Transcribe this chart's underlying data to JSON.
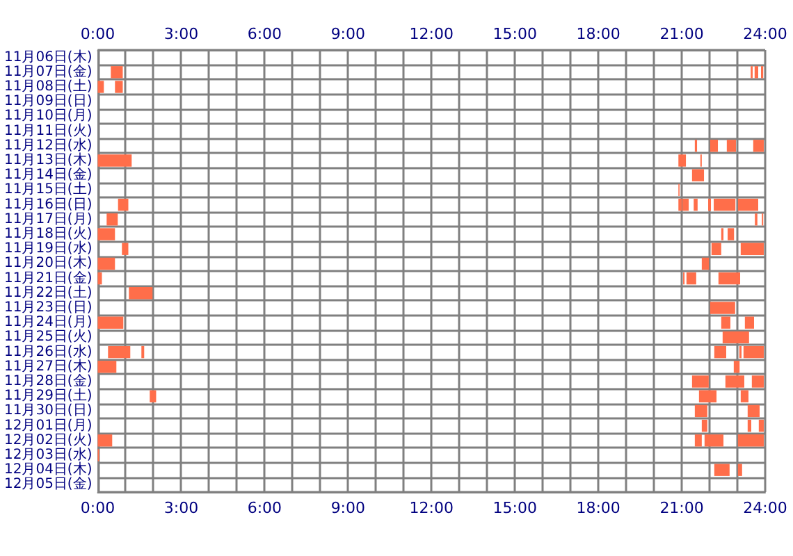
{
  "chart_data": {
    "type": "bar",
    "orientation": "horizontal",
    "grid": true,
    "categories": [
      "11月06日(木)",
      "11月07日(金)",
      "11月08日(土)",
      "11月09日(日)",
      "11月10日(月)",
      "11月11日(火)",
      "11月12日(水)",
      "11月13日(木)",
      "11月14日(金)",
      "11月15日(土)",
      "11月16日(日)",
      "11月17日(月)",
      "11月18日(火)",
      "11月19日(水)",
      "11月20日(木)",
      "11月21日(金)",
      "11月22日(土)",
      "11月23日(日)",
      "11月24日(月)",
      "11月25日(火)",
      "11月26日(水)",
      "11月27日(木)",
      "11月28日(金)",
      "11月29日(土)",
      "11月30日(日)",
      "12月01日(月)",
      "12月02日(火)",
      "12月03日(水)",
      "12月04日(木)",
      "12月05日(金)"
    ],
    "xlim": [
      0,
      24
    ],
    "xticks": [
      {
        "value": 0,
        "label": "0:00"
      },
      {
        "value": 1,
        "label": null
      },
      {
        "value": 2,
        "label": null
      },
      {
        "value": 3,
        "label": "3:00"
      },
      {
        "value": 4,
        "label": null
      },
      {
        "value": 5,
        "label": null
      },
      {
        "value": 6,
        "label": "6:00"
      },
      {
        "value": 7,
        "label": null
      },
      {
        "value": 8,
        "label": null
      },
      {
        "value": 9,
        "label": "9:00"
      },
      {
        "value": 10,
        "label": null
      },
      {
        "value": 11,
        "label": null
      },
      {
        "value": 12,
        "label": "12:00"
      },
      {
        "value": 13,
        "label": null
      },
      {
        "value": 14,
        "label": null
      },
      {
        "value": 15,
        "label": "15:00"
      },
      {
        "value": 16,
        "label": null
      },
      {
        "value": 17,
        "label": null
      },
      {
        "value": 18,
        "label": "18:00"
      },
      {
        "value": 19,
        "label": null
      },
      {
        "value": 20,
        "label": null
      },
      {
        "value": 21,
        "label": "21:00"
      },
      {
        "value": 22,
        "label": null
      },
      {
        "value": 23,
        "label": null
      },
      {
        "value": 24,
        "label": "24:00"
      }
    ],
    "x2lim": [
      0,
      24
    ],
    "x2ticks": [
      {
        "value": 0,
        "label": "0:00"
      },
      {
        "value": 3,
        "label": "3:00"
      },
      {
        "value": 6,
        "label": "6:00"
      },
      {
        "value": 9,
        "label": "9:00"
      },
      {
        "value": 12,
        "label": "12:00"
      },
      {
        "value": 15,
        "label": "15:00"
      },
      {
        "value": 18,
        "label": "18:00"
      },
      {
        "value": 21,
        "label": "21:00"
      },
      {
        "value": 24,
        "label": "24:00"
      }
    ],
    "series": [
      {
        "color": "#ff6e4a",
        "base": [
          null,
          0.47,
          0,
          null,
          null,
          null,
          21.47,
          0,
          21.37,
          20.88,
          0.73,
          0.32,
          0,
          0.87,
          0,
          0,
          1.12,
          22.02,
          0,
          22.47,
          0.37,
          0,
          21.37,
          1.87,
          21.47,
          21.72,
          0,
          0,
          22.17,
          null
        ],
        "values": [
          null,
          0.43,
          0.22,
          null,
          null,
          null,
          0.08,
          1.22,
          0.43,
          0.04,
          0.37,
          0.4,
          0.62,
          0.23,
          0.62,
          0.15,
          0.85,
          0.9,
          0.92,
          0.95,
          0.8,
          0.67,
          0.6,
          0.23,
          0.45,
          0.2,
          0.52,
          0.05,
          0.55,
          null
        ]
      },
      {
        "color": "#ff6e4a",
        "base": [
          null,
          23.48,
          0.62,
          null,
          null,
          null,
          22.02,
          20.88,
          null,
          null,
          20.88,
          23.63,
          22.42,
          22.07,
          21.72,
          21.05,
          null,
          null,
          22.42,
          null,
          1.57,
          22.87,
          22.57,
          21.62,
          23.37,
          23.37,
          21.47,
          null,
          23.02,
          null
        ],
        "values": [
          null,
          0.07,
          0.28,
          null,
          null,
          null,
          0.28,
          0.27,
          null,
          null,
          0.12,
          0.09,
          0.08,
          0.35,
          0.26,
          0.05,
          null,
          null,
          0.33,
          null,
          0.1,
          0.21,
          0.68,
          0.63,
          0.43,
          0.13,
          0.25,
          null,
          0.15,
          null
        ]
      },
      {
        "color": "#ff6e4a",
        "base": [
          null,
          23.62,
          null,
          null,
          null,
          null,
          22.62,
          21.67,
          null,
          null,
          21.02,
          23.88,
          22.65,
          23.12,
          null,
          21.17,
          null,
          null,
          23.27,
          null,
          22.17,
          null,
          23.52,
          23.12,
          null,
          23.77,
          21.82,
          null,
          null,
          null
        ],
        "values": [
          null,
          0.13,
          null,
          null,
          null,
          null,
          0.33,
          0.05,
          null,
          null,
          0.23,
          0.05,
          0.23,
          0.83,
          null,
          0.35,
          null,
          null,
          0.33,
          null,
          0.43,
          null,
          0.43,
          0.28,
          null,
          0.18,
          0.68,
          null,
          null,
          null
        ]
      },
      {
        "color": "#ff6e4a",
        "base": [
          null,
          23.85,
          null,
          null,
          null,
          null,
          23.57,
          null,
          null,
          null,
          21.43,
          null,
          null,
          null,
          null,
          22.32,
          null,
          null,
          null,
          null,
          23.07,
          null,
          null,
          null,
          null,
          null,
          23.02,
          null,
          null,
          null
        ],
        "values": [
          null,
          0.08,
          null,
          null,
          null,
          null,
          0.38,
          null,
          null,
          null,
          0.14,
          null,
          null,
          null,
          null,
          0.78,
          null,
          null,
          null,
          null,
          0.08,
          null,
          null,
          null,
          null,
          null,
          0.93,
          null,
          null,
          null
        ]
      },
      {
        "color": "#ff6e4a",
        "base": [
          null,
          null,
          null,
          null,
          null,
          null,
          null,
          null,
          null,
          null,
          21.95,
          null,
          null,
          null,
          null,
          null,
          null,
          null,
          null,
          null,
          23.22,
          null,
          null,
          null,
          null,
          null,
          null,
          null,
          null,
          null
        ],
        "values": [
          null,
          null,
          null,
          null,
          null,
          null,
          null,
          null,
          null,
          null,
          0.1,
          null,
          null,
          null,
          null,
          null,
          null,
          null,
          null,
          null,
          0.73,
          null,
          null,
          null,
          null,
          null,
          null,
          null,
          null,
          null
        ]
      },
      {
        "color": "#ff6e4a",
        "base": [
          null,
          null,
          null,
          null,
          null,
          null,
          null,
          null,
          null,
          null,
          22.15,
          null,
          null,
          null,
          null,
          null,
          null,
          null,
          null,
          null,
          null,
          null,
          null,
          null,
          null,
          null,
          null,
          null,
          null,
          null
        ],
        "values": [
          null,
          null,
          null,
          null,
          null,
          null,
          null,
          null,
          null,
          null,
          0.78,
          null,
          null,
          null,
          null,
          null,
          null,
          null,
          null,
          null,
          null,
          null,
          null,
          null,
          null,
          null,
          null,
          null,
          null,
          null
        ]
      },
      {
        "color": "#ff6e4a",
        "base": [
          null,
          null,
          null,
          null,
          null,
          null,
          null,
          null,
          null,
          null,
          23.02,
          null,
          null,
          null,
          null,
          null,
          null,
          null,
          null,
          null,
          null,
          null,
          null,
          null,
          null,
          null,
          null,
          null,
          null,
          null
        ],
        "values": [
          null,
          null,
          null,
          null,
          null,
          null,
          null,
          null,
          null,
          null,
          0.73,
          null,
          null,
          null,
          null,
          null,
          null,
          null,
          null,
          null,
          null,
          null,
          null,
          null,
          null,
          null,
          null,
          null,
          null,
          null
        ]
      }
    ]
  }
}
